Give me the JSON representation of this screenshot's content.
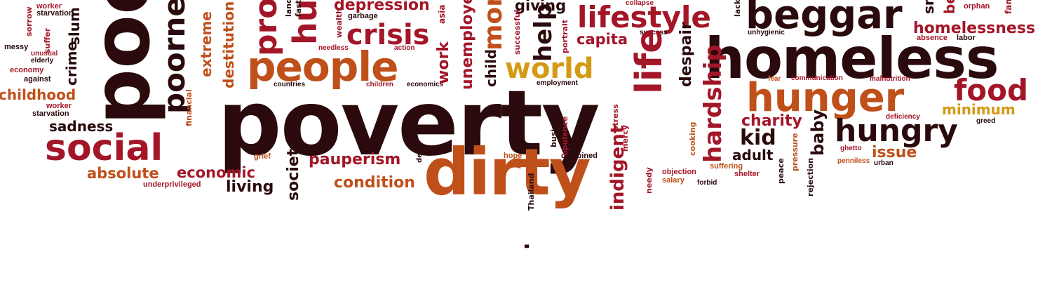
{
  "palette": {
    "dark": "#2a0a0c",
    "red": "#a31628",
    "orange": "#c0501a",
    "gold": "#d49a14",
    "tan": "#c87a3a",
    "pink": "#c73a52"
  },
  "words": [
    {
      "t": "poverty",
      "c": "dark"
    },
    {
      "t": "homeless",
      "c": "dark"
    },
    {
      "t": "beggar",
      "c": "dark"
    },
    {
      "t": "lifestyle",
      "c": "red"
    },
    {
      "t": "people",
      "c": "orange"
    },
    {
      "t": "world",
      "c": "gold"
    },
    {
      "t": "crisis",
      "c": "red"
    },
    {
      "t": "depression",
      "c": "red"
    },
    {
      "t": "giving",
      "c": "dark"
    },
    {
      "t": "capita",
      "c": "red"
    },
    {
      "t": "hunger",
      "c": "orange"
    },
    {
      "t": "food",
      "c": "red"
    },
    {
      "t": "minimum",
      "c": "gold"
    },
    {
      "t": "hungry",
      "c": "dark"
    },
    {
      "t": "charity",
      "c": "red"
    },
    {
      "t": "kid",
      "c": "dark"
    },
    {
      "t": "adult",
      "c": "dark"
    },
    {
      "t": "issue",
      "c": "orange"
    },
    {
      "t": "social",
      "c": "red"
    },
    {
      "t": "sadness",
      "c": "dark"
    },
    {
      "t": "absolute",
      "c": "orange"
    },
    {
      "t": "economic",
      "c": "red"
    },
    {
      "t": "living",
      "c": "dark"
    },
    {
      "t": "pauperism",
      "c": "red"
    },
    {
      "t": "condition",
      "c": "orange"
    },
    {
      "t": "dirty",
      "c": "orange"
    },
    {
      "t": "childhood",
      "c": "orange"
    },
    {
      "t": "starvation",
      "c": "dark"
    },
    {
      "t": "worker",
      "c": "red"
    },
    {
      "t": "against",
      "c": "dark"
    },
    {
      "t": "economy",
      "c": "red"
    },
    {
      "t": "elderly",
      "c": "dark"
    },
    {
      "t": "unusual",
      "c": "red"
    },
    {
      "t": "messy",
      "c": "dark"
    },
    {
      "t": "homelessness",
      "c": "red"
    },
    {
      "t": "absence",
      "c": "red"
    },
    {
      "t": "labor",
      "c": "dark"
    },
    {
      "t": "orphan",
      "c": "red"
    },
    {
      "t": "greed",
      "c": "dark"
    },
    {
      "t": "deficiency",
      "c": "red"
    },
    {
      "t": "malnutrition",
      "c": "red"
    },
    {
      "t": "communication",
      "c": "red"
    },
    {
      "t": "fear",
      "c": "orange"
    },
    {
      "t": "ghetto",
      "c": "red"
    },
    {
      "t": "penniless",
      "c": "orange"
    },
    {
      "t": "urban",
      "c": "dark"
    },
    {
      "t": "objection",
      "c": "red"
    },
    {
      "t": "salary",
      "c": "orange"
    },
    {
      "t": "forbid",
      "c": "dark"
    },
    {
      "t": "suffering",
      "c": "orange"
    },
    {
      "t": "shelter",
      "c": "red"
    },
    {
      "t": "combined",
      "c": "dark"
    },
    {
      "t": "hope",
      "c": "orange"
    },
    {
      "t": "grief",
      "c": "orange"
    },
    {
      "t": "underprivileged",
      "c": "red"
    },
    {
      "t": "success",
      "c": "dark"
    },
    {
      "t": "collapse",
      "c": "red"
    },
    {
      "t": "unhygienic",
      "c": "dark"
    },
    {
      "t": "countries",
      "c": "dark"
    },
    {
      "t": "children",
      "c": "red"
    },
    {
      "t": "economics",
      "c": "dark"
    },
    {
      "t": "employment",
      "c": "dark"
    },
    {
      "t": "needless",
      "c": "red"
    },
    {
      "t": "action",
      "c": "red"
    },
    {
      "t": "garbage",
      "c": "dark"
    },
    {
      "t": "poor",
      "c": "dark"
    },
    {
      "t": "poorness",
      "c": "dark"
    },
    {
      "t": "problem",
      "c": "red"
    },
    {
      "t": "human",
      "c": "red"
    },
    {
      "t": "money",
      "c": "orange"
    },
    {
      "t": "help",
      "c": "dark"
    },
    {
      "t": "life",
      "c": "red"
    },
    {
      "t": "despair",
      "c": "dark"
    },
    {
      "t": "hardship",
      "c": "red"
    },
    {
      "t": "baby",
      "c": "dark"
    },
    {
      "t": "indigent",
      "c": "red"
    },
    {
      "t": "society",
      "c": "dark"
    },
    {
      "t": "crime",
      "c": "dark"
    },
    {
      "t": "slum",
      "c": "dark"
    },
    {
      "t": "extreme",
      "c": "orange"
    },
    {
      "t": "financial",
      "c": "orange"
    },
    {
      "t": "destitution",
      "c": "orange"
    },
    {
      "t": "unemployed",
      "c": "red"
    },
    {
      "t": "work",
      "c": "red"
    },
    {
      "t": "child",
      "c": "dark"
    },
    {
      "t": "small",
      "c": "dark"
    },
    {
      "t": "sorrow",
      "c": "red"
    },
    {
      "t": "suffer",
      "c": "red"
    },
    {
      "t": "land",
      "c": "dark"
    },
    {
      "t": "fast",
      "c": "dark"
    },
    {
      "t": "wealth",
      "c": "red"
    },
    {
      "t": "successful",
      "c": "red"
    },
    {
      "t": "portrait",
      "c": "red"
    },
    {
      "t": "asia",
      "c": "red"
    },
    {
      "t": "deep",
      "c": "dark"
    },
    {
      "t": "Thailand",
      "c": "dark"
    },
    {
      "t": "business",
      "c": "dark"
    },
    {
      "t": "opulence",
      "c": "red"
    },
    {
      "t": "stress",
      "c": "red"
    },
    {
      "t": "mercy",
      "c": "red"
    },
    {
      "t": "needy",
      "c": "red"
    },
    {
      "t": "cooking",
      "c": "orange"
    },
    {
      "t": "peace",
      "c": "dark"
    },
    {
      "t": "rejection",
      "c": "dark"
    },
    {
      "t": "pressure",
      "c": "orange"
    },
    {
      "t": "lack",
      "c": "dark"
    },
    {
      "t": "famine",
      "c": "red"
    },
    {
      "t": "beg",
      "c": "red"
    },
    {
      "t": "poverty",
      "c": "dark"
    }
  ]
}
